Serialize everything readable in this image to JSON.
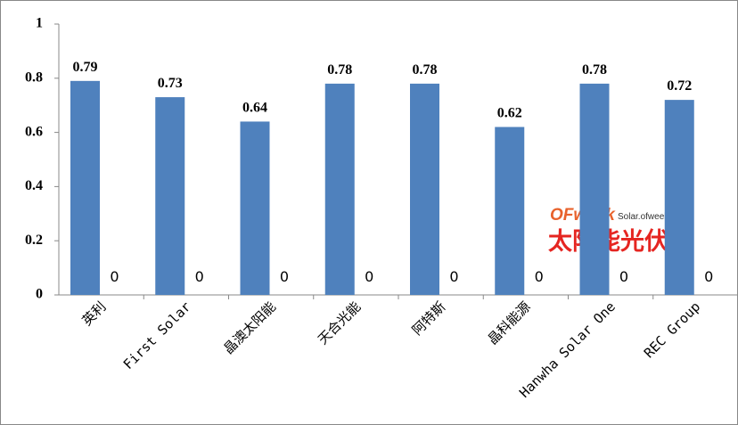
{
  "chart_data": {
    "type": "bar",
    "categories": [
      "英利",
      "First Solar",
      "晶澳太阳能",
      "天合光能",
      "阿特斯",
      "晶科能源",
      "Hanwha Solar One",
      "REC Group"
    ],
    "series": [
      {
        "color": "#4f81bd",
        "values": [
          0.79,
          0.73,
          0.64,
          0.78,
          0.78,
          0.62,
          0.78,
          0.72
        ]
      },
      {
        "color": "#c0504d",
        "values": [
          0,
          0,
          0,
          0,
          0,
          0,
          0,
          0
        ]
      }
    ],
    "ylim": [
      0,
      1
    ],
    "yticks": [
      0,
      0.2,
      0.4,
      0.6,
      0.8,
      1
    ],
    "grid": false
  },
  "watermark": {
    "logo": "OFweek",
    "site": "Solar.ofweek.com",
    "name": "太阳能光伏网"
  }
}
